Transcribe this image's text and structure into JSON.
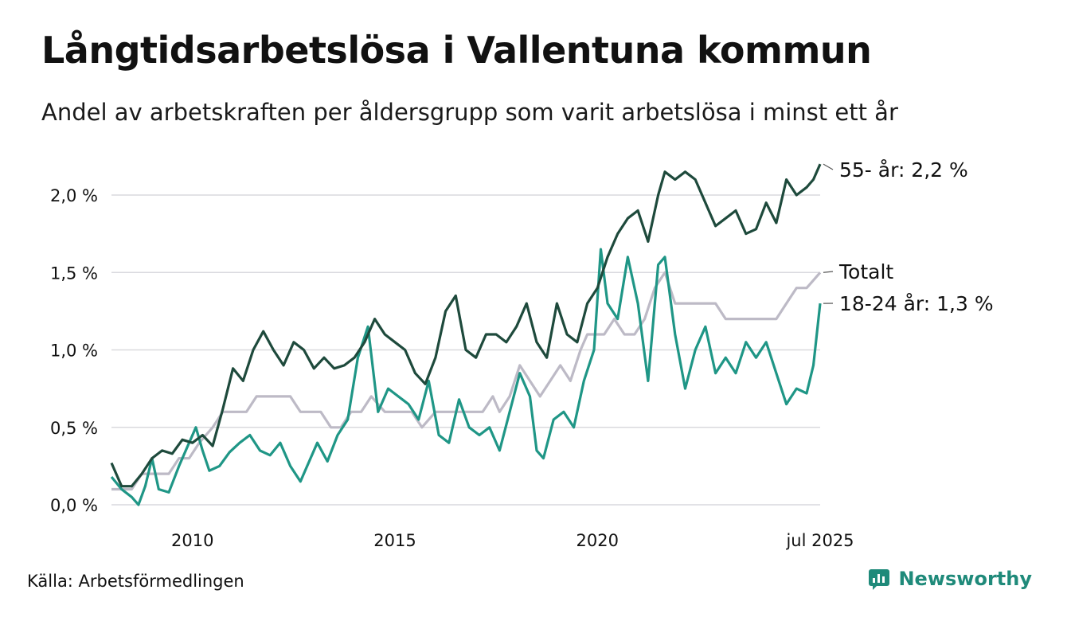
{
  "header": {
    "title": "Långtidsarbetslösa i Vallentuna kommun",
    "subtitle": "Andel av arbetskraften per åldersgrupp som varit arbetslösa i minst ett år"
  },
  "footer": {
    "source": "Källa: Arbetsförmedlingen",
    "brand": "Newsworthy"
  },
  "chart_data": {
    "type": "line",
    "x_start": "2008-01",
    "x_end": "2025-07",
    "x_ticks": [
      {
        "label": "2010",
        "date": "2010-01"
      },
      {
        "label": "2015",
        "date": "2015-01"
      },
      {
        "label": "2020",
        "date": "2020-01"
      },
      {
        "label": "jul 2025",
        "date": "2025-07"
      }
    ],
    "y_ticks": [
      {
        "label": "0,0 %",
        "value": 0.0
      },
      {
        "label": "0,5 %",
        "value": 0.5
      },
      {
        "label": "1,0 %",
        "value": 1.0
      },
      {
        "label": "1,5 %",
        "value": 1.5
      },
      {
        "label": "2,0 %",
        "value": 2.0
      }
    ],
    "ylim": [
      0,
      2.2
    ],
    "grid": "horizontal",
    "series": [
      {
        "name": "Totalt",
        "end_label": "Totalt",
        "color": "#bdbac6",
        "points": [
          [
            "2008-01",
            0.1
          ],
          [
            "2008-07",
            0.1
          ],
          [
            "2008-10",
            0.2
          ],
          [
            "2009-06",
            0.2
          ],
          [
            "2009-09",
            0.3
          ],
          [
            "2009-12",
            0.3
          ],
          [
            "2010-03",
            0.4
          ],
          [
            "2010-07",
            0.5
          ],
          [
            "2010-10",
            0.6
          ],
          [
            "2011-05",
            0.6
          ],
          [
            "2011-08",
            0.7
          ],
          [
            "2012-06",
            0.7
          ],
          [
            "2012-09",
            0.6
          ],
          [
            "2013-03",
            0.6
          ],
          [
            "2013-06",
            0.5
          ],
          [
            "2013-09",
            0.5
          ],
          [
            "2013-12",
            0.6
          ],
          [
            "2014-03",
            0.6
          ],
          [
            "2014-06",
            0.7
          ],
          [
            "2014-10",
            0.6
          ],
          [
            "2015-06",
            0.6
          ],
          [
            "2015-09",
            0.5
          ],
          [
            "2016-01",
            0.6
          ],
          [
            "2016-06",
            0.6
          ],
          [
            "2017-03",
            0.6
          ],
          [
            "2017-06",
            0.7
          ],
          [
            "2017-08",
            0.6
          ],
          [
            "2017-11",
            0.7
          ],
          [
            "2018-02",
            0.9
          ],
          [
            "2018-05",
            0.8
          ],
          [
            "2018-08",
            0.7
          ],
          [
            "2018-11",
            0.8
          ],
          [
            "2019-02",
            0.9
          ],
          [
            "2019-05",
            0.8
          ],
          [
            "2019-08",
            1.0
          ],
          [
            "2019-10",
            1.1
          ],
          [
            "2020-03",
            1.1
          ],
          [
            "2020-06",
            1.2
          ],
          [
            "2020-09",
            1.1
          ],
          [
            "2020-12",
            1.1
          ],
          [
            "2021-03",
            1.2
          ],
          [
            "2021-06",
            1.4
          ],
          [
            "2021-09",
            1.5
          ],
          [
            "2021-12",
            1.3
          ],
          [
            "2022-06",
            1.3
          ],
          [
            "2022-09",
            1.3
          ],
          [
            "2022-12",
            1.3
          ],
          [
            "2023-03",
            1.2
          ],
          [
            "2023-09",
            1.2
          ],
          [
            "2024-03",
            1.2
          ],
          [
            "2024-06",
            1.2
          ],
          [
            "2024-09",
            1.3
          ],
          [
            "2024-12",
            1.4
          ],
          [
            "2025-03",
            1.4
          ],
          [
            "2025-07",
            1.5
          ]
        ]
      },
      {
        "name": "18-24 år",
        "end_label": "18-24 år: 1,3 %",
        "color": "#1f9686",
        "points": [
          [
            "2008-01",
            0.18
          ],
          [
            "2008-04",
            0.1
          ],
          [
            "2008-07",
            0.05
          ],
          [
            "2008-09",
            0.0
          ],
          [
            "2008-11",
            0.12
          ],
          [
            "2009-01",
            0.3
          ],
          [
            "2009-03",
            0.1
          ],
          [
            "2009-06",
            0.08
          ],
          [
            "2009-09",
            0.25
          ],
          [
            "2009-12",
            0.4
          ],
          [
            "2010-02",
            0.5
          ],
          [
            "2010-04",
            0.35
          ],
          [
            "2010-06",
            0.22
          ],
          [
            "2010-09",
            0.25
          ],
          [
            "2010-12",
            0.34
          ],
          [
            "2011-03",
            0.4
          ],
          [
            "2011-06",
            0.45
          ],
          [
            "2011-09",
            0.35
          ],
          [
            "2011-12",
            0.32
          ],
          [
            "2012-03",
            0.4
          ],
          [
            "2012-06",
            0.25
          ],
          [
            "2012-09",
            0.15
          ],
          [
            "2012-12",
            0.3
          ],
          [
            "2013-02",
            0.4
          ],
          [
            "2013-05",
            0.28
          ],
          [
            "2013-08",
            0.45
          ],
          [
            "2013-11",
            0.55
          ],
          [
            "2014-02",
            0.95
          ],
          [
            "2014-05",
            1.15
          ],
          [
            "2014-08",
            0.6
          ],
          [
            "2014-11",
            0.75
          ],
          [
            "2015-02",
            0.7
          ],
          [
            "2015-05",
            0.65
          ],
          [
            "2015-08",
            0.55
          ],
          [
            "2015-11",
            0.8
          ],
          [
            "2016-02",
            0.45
          ],
          [
            "2016-05",
            0.4
          ],
          [
            "2016-08",
            0.68
          ],
          [
            "2016-11",
            0.5
          ],
          [
            "2017-02",
            0.45
          ],
          [
            "2017-05",
            0.5
          ],
          [
            "2017-08",
            0.35
          ],
          [
            "2017-11",
            0.6
          ],
          [
            "2018-02",
            0.85
          ],
          [
            "2018-05",
            0.7
          ],
          [
            "2018-07",
            0.35
          ],
          [
            "2018-09",
            0.3
          ],
          [
            "2018-12",
            0.55
          ],
          [
            "2019-03",
            0.6
          ],
          [
            "2019-06",
            0.5
          ],
          [
            "2019-09",
            0.8
          ],
          [
            "2019-12",
            1.0
          ],
          [
            "2020-02",
            1.65
          ],
          [
            "2020-04",
            1.3
          ],
          [
            "2020-07",
            1.2
          ],
          [
            "2020-10",
            1.6
          ],
          [
            "2021-01",
            1.3
          ],
          [
            "2021-04",
            0.8
          ],
          [
            "2021-07",
            1.55
          ],
          [
            "2021-09",
            1.6
          ],
          [
            "2021-12",
            1.1
          ],
          [
            "2022-03",
            0.75
          ],
          [
            "2022-06",
            1.0
          ],
          [
            "2022-09",
            1.15
          ],
          [
            "2022-12",
            0.85
          ],
          [
            "2023-03",
            0.95
          ],
          [
            "2023-06",
            0.85
          ],
          [
            "2023-09",
            1.05
          ],
          [
            "2023-12",
            0.95
          ],
          [
            "2024-03",
            1.05
          ],
          [
            "2024-06",
            0.85
          ],
          [
            "2024-09",
            0.65
          ],
          [
            "2024-12",
            0.75
          ],
          [
            "2025-03",
            0.72
          ],
          [
            "2025-05",
            0.9
          ],
          [
            "2025-07",
            1.3
          ]
        ]
      },
      {
        "name": "55- år",
        "end_label": "55- år: 2,2 %",
        "color": "#1e4a3c",
        "points": [
          [
            "2008-01",
            0.27
          ],
          [
            "2008-04",
            0.12
          ],
          [
            "2008-07",
            0.12
          ],
          [
            "2008-10",
            0.2
          ],
          [
            "2009-01",
            0.3
          ],
          [
            "2009-04",
            0.35
          ],
          [
            "2009-07",
            0.33
          ],
          [
            "2009-10",
            0.42
          ],
          [
            "2010-01",
            0.4
          ],
          [
            "2010-04",
            0.45
          ],
          [
            "2010-07",
            0.38
          ],
          [
            "2010-10",
            0.62
          ],
          [
            "2011-01",
            0.88
          ],
          [
            "2011-04",
            0.8
          ],
          [
            "2011-07",
            1.0
          ],
          [
            "2011-10",
            1.12
          ],
          [
            "2012-01",
            1.0
          ],
          [
            "2012-04",
            0.9
          ],
          [
            "2012-07",
            1.05
          ],
          [
            "2012-10",
            1.0
          ],
          [
            "2013-01",
            0.88
          ],
          [
            "2013-04",
            0.95
          ],
          [
            "2013-07",
            0.88
          ],
          [
            "2013-10",
            0.9
          ],
          [
            "2014-01",
            0.95
          ],
          [
            "2014-04",
            1.05
          ],
          [
            "2014-07",
            1.2
          ],
          [
            "2014-10",
            1.1
          ],
          [
            "2015-01",
            1.05
          ],
          [
            "2015-04",
            1.0
          ],
          [
            "2015-07",
            0.85
          ],
          [
            "2015-10",
            0.78
          ],
          [
            "2016-01",
            0.95
          ],
          [
            "2016-04",
            1.25
          ],
          [
            "2016-07",
            1.35
          ],
          [
            "2016-10",
            1.0
          ],
          [
            "2017-01",
            0.95
          ],
          [
            "2017-04",
            1.1
          ],
          [
            "2017-07",
            1.1
          ],
          [
            "2017-10",
            1.05
          ],
          [
            "2018-01",
            1.15
          ],
          [
            "2018-04",
            1.3
          ],
          [
            "2018-07",
            1.05
          ],
          [
            "2018-10",
            0.95
          ],
          [
            "2019-01",
            1.3
          ],
          [
            "2019-04",
            1.1
          ],
          [
            "2019-07",
            1.05
          ],
          [
            "2019-10",
            1.3
          ],
          [
            "2020-01",
            1.4
          ],
          [
            "2020-04",
            1.6
          ],
          [
            "2020-07",
            1.75
          ],
          [
            "2020-10",
            1.85
          ],
          [
            "2021-01",
            1.9
          ],
          [
            "2021-04",
            1.7
          ],
          [
            "2021-07",
            2.0
          ],
          [
            "2021-09",
            2.15
          ],
          [
            "2021-12",
            2.1
          ],
          [
            "2022-03",
            2.15
          ],
          [
            "2022-06",
            2.1
          ],
          [
            "2022-09",
            1.95
          ],
          [
            "2022-12",
            1.8
          ],
          [
            "2023-03",
            1.85
          ],
          [
            "2023-06",
            1.9
          ],
          [
            "2023-09",
            1.75
          ],
          [
            "2023-12",
            1.78
          ],
          [
            "2024-03",
            1.95
          ],
          [
            "2024-06",
            1.82
          ],
          [
            "2024-09",
            2.1
          ],
          [
            "2024-12",
            2.0
          ],
          [
            "2025-03",
            2.05
          ],
          [
            "2025-05",
            2.1
          ],
          [
            "2025-07",
            2.2
          ]
        ]
      }
    ]
  }
}
